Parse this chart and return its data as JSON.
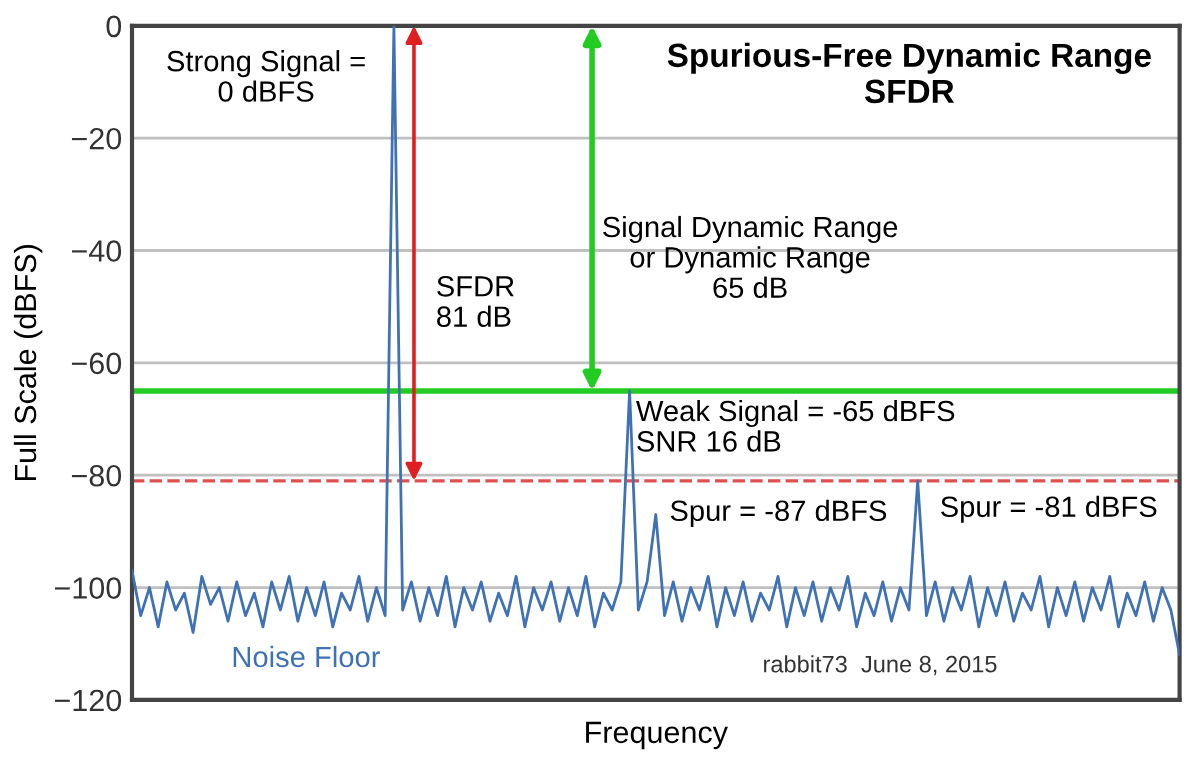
{
  "chart_data": {
    "type": "line",
    "title": "Spurious-Free Dynamic Range\nSFDR",
    "xlabel": "Frequency",
    "ylabel": "Full Scale (dBFS)",
    "categories": [
      null,
      null,
      null,
      null,
      null,
      null,
      null,
      null,
      null,
      null,
      null,
      null,
      null,
      null,
      null,
      null,
      null,
      null,
      null,
      null,
      null,
      null,
      null,
      null,
      null,
      null,
      null,
      null,
      null,
      null,
      null,
      null,
      null,
      null,
      null,
      null,
      null,
      null,
      null,
      null,
      null,
      null,
      null,
      null,
      null,
      null,
      null,
      null,
      null,
      null,
      null,
      null,
      null,
      null,
      null,
      null,
      null,
      null,
      null,
      null,
      null,
      null,
      null,
      null,
      null,
      null,
      null,
      null,
      null,
      null,
      null,
      null,
      null,
      null,
      null,
      null,
      null,
      null,
      null,
      null,
      null,
      null,
      null,
      null,
      null,
      null,
      null,
      null,
      null,
      null,
      null,
      null,
      null,
      null,
      null,
      null,
      null,
      null,
      null,
      null,
      null,
      null,
      null,
      null,
      null,
      null,
      null,
      null,
      null,
      null,
      null,
      null,
      null,
      null,
      null,
      null,
      null,
      null,
      null,
      null,
      null
    ],
    "series": [
      {
        "color": "#3f72b5",
        "values": [
          -97,
          -105,
          -100,
          -107,
          -99,
          -104,
          -101,
          -108,
          -98,
          -103,
          -100,
          -106,
          -99,
          -105,
          -101,
          -107,
          -99,
          -104,
          -98,
          -106,
          -100,
          -105,
          -99,
          -107,
          -101,
          -104,
          -98,
          -106,
          -100,
          -105,
          0,
          -104,
          -99,
          -106,
          -100,
          -105,
          -98,
          -107,
          -100,
          -104,
          -99,
          -106,
          -101,
          -105,
          -98,
          -107,
          -100,
          -104,
          -99,
          -106,
          -100,
          -105,
          -98,
          -107,
          -101,
          -104,
          -99,
          -65,
          -104,
          -99,
          -87,
          -105,
          -99,
          -106,
          -100,
          -104,
          -98,
          -107,
          -100,
          -105,
          -99,
          -106,
          -101,
          -104,
          -98,
          -107,
          -100,
          -105,
          -99,
          -106,
          -100,
          -104,
          -98,
          -107,
          -101,
          -105,
          -99,
          -106,
          -100,
          -104,
          -81,
          -105,
          -99,
          -106,
          -100,
          -104,
          -98,
          -107,
          -100,
          -105,
          -99,
          -106,
          -101,
          -104,
          -98,
          -107,
          -100,
          -105,
          -99,
          -106,
          -100,
          -104,
          -98,
          -107,
          -101,
          -105,
          -99,
          -106,
          -100,
          -104,
          -112
        ]
      }
    ],
    "ylim": [
      -120,
      0
    ],
    "yticks": [
      {
        "value": 0,
        "label": "0"
      },
      {
        "value": -20,
        "label": "−20"
      },
      {
        "value": -40,
        "label": "−40"
      },
      {
        "value": -60,
        "label": "−60"
      },
      {
        "value": -80,
        "label": "−80"
      },
      {
        "value": -100,
        "label": "−100"
      },
      {
        "value": -120,
        "label": "−120"
      }
    ],
    "grid": "y",
    "legend": false,
    "marker": "none",
    "line_style": "solid",
    "ref_lines": [
      {
        "axis": "y",
        "value": -65,
        "color": "#22cc22",
        "line_style": "solid"
      },
      {
        "axis": "y",
        "value": -81,
        "color": "#e05050",
        "line_style": "dashed"
      }
    ],
    "annotations": [
      "Strong Signal =\n0 dBFS",
      "SFDR\n81 dB",
      "Signal Dynamic Range\nor Dynamic Range\n65 dB",
      "Weak Signal = -65 dBFS\nSNR 16 dB",
      "Spur = -87 dBFS",
      "Spur = -81 dBFS",
      "Noise Floor",
      "rabbit73  June 8, 2015"
    ]
  }
}
